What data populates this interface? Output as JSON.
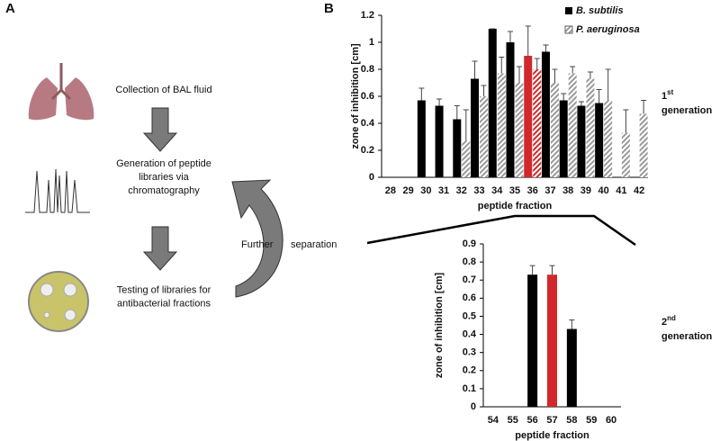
{
  "panel_a": {
    "label": "A",
    "steps": [
      [
        "Collection of BAL fluid"
      ],
      [
        "Generation of peptide",
        "libraries via",
        "chromatography"
      ],
      [
        "Testing of libraries for",
        "antibacterial fractions"
      ]
    ],
    "loop_label": [
      "Further",
      "separation"
    ]
  },
  "panel_b": {
    "label": "B",
    "generations": [
      {
        "number": "1",
        "suffix": "st",
        "word": "generation"
      },
      {
        "number": "2",
        "suffix": "nd",
        "word": "generation"
      }
    ]
  },
  "chart_data": [
    {
      "type": "bar",
      "x_label": "peptide fraction",
      "y_label": "zone of inhibition [cm]",
      "categories": [
        "28",
        "29",
        "30",
        "31",
        "32",
        "33",
        "34",
        "35",
        "36",
        "37",
        "38",
        "39",
        "40",
        "41",
        "42"
      ],
      "series": [
        {
          "name": "B. subtilis",
          "color": "#000000",
          "fill": "solid",
          "values": [
            null,
            null,
            0.57,
            0.53,
            0.43,
            0.73,
            1.1,
            1.0,
            0.9,
            0.93,
            0.57,
            0.53,
            0.55,
            null,
            null
          ],
          "errors": [
            null,
            null,
            0.09,
            0.05,
            0.1,
            0.13,
            0,
            0.08,
            0.22,
            0.05,
            0.05,
            0.03,
            0.1,
            null,
            null
          ]
        },
        {
          "name": "P. aeruginosa",
          "color": "#9a9a9a",
          "fill": "hatched",
          "values": [
            null,
            null,
            null,
            null,
            0.27,
            0.6,
            0.77,
            0.7,
            0.8,
            0.7,
            0.77,
            0.73,
            0.57,
            0.33,
            0.47
          ],
          "errors": [
            null,
            null,
            null,
            null,
            0.23,
            0.08,
            0.12,
            0.12,
            0.08,
            0.1,
            0.05,
            0.05,
            0.23,
            0.17,
            0.1
          ]
        }
      ],
      "highlight_index": 8,
      "highlight_color": "#d0282c",
      "ylim": [
        0,
        1.2
      ],
      "yticks": [
        0,
        0.2,
        0.4,
        0.6,
        0.8,
        1,
        1.2
      ]
    },
    {
      "type": "bar",
      "x_label": "peptide fraction",
      "y_label": "zone of inhibition [cm]",
      "categories": [
        "54",
        "55",
        "56",
        "57",
        "58",
        "59",
        "60"
      ],
      "values": [
        null,
        null,
        0.73,
        0.73,
        0.43,
        null,
        null
      ],
      "errors": [
        null,
        null,
        0.05,
        0.05,
        0.05,
        null,
        null
      ],
      "colors": [
        null,
        null,
        "#000000",
        "#d0282c",
        "#000000",
        null,
        null
      ],
      "ylim": [
        0,
        0.9
      ],
      "yticks": [
        0,
        0.1,
        0.2,
        0.3,
        0.4,
        0.5,
        0.6,
        0.7,
        0.8,
        0.9
      ]
    }
  ]
}
